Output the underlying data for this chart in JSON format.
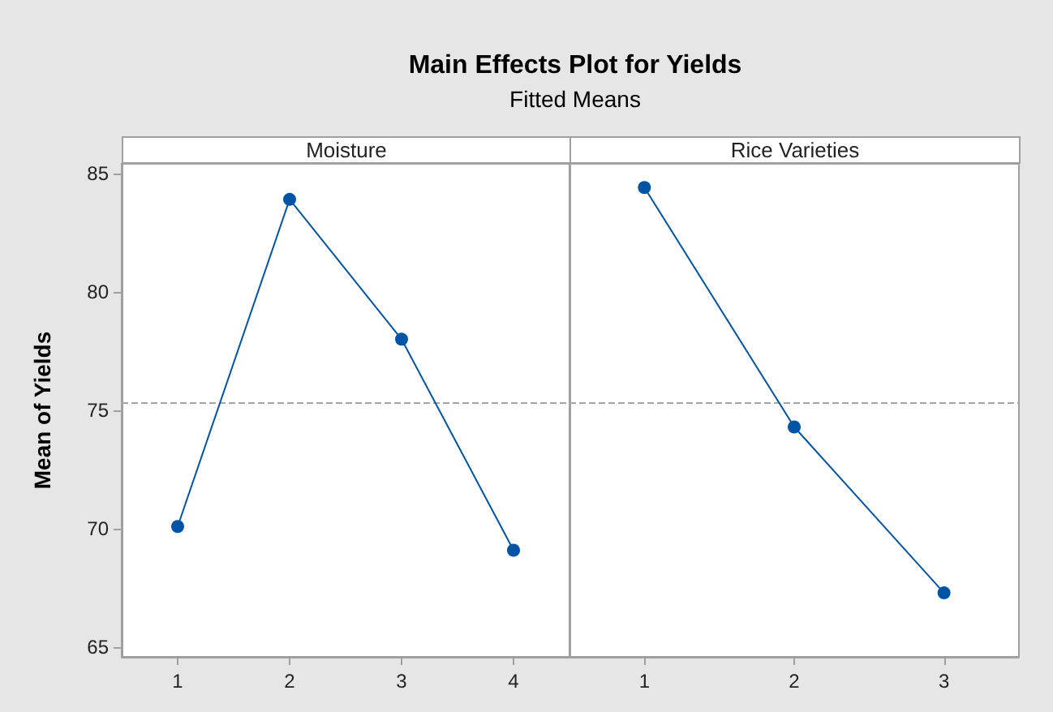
{
  "chart_data": [
    {
      "type": "line",
      "title": "Main Effects Plot for Yields",
      "subtitle": "Fitted Means",
      "xlabel": "Moisture",
      "ylabel": "Mean of Yields",
      "categories": [
        "1",
        "2",
        "3",
        "4"
      ],
      "series": [
        {
          "color": "#0054a6",
          "values": [
            70.1,
            83.9,
            78.0,
            69.1
          ]
        }
      ],
      "ylim": [
        64.6,
        85.4
      ],
      "yticks": [
        65,
        70,
        75,
        80,
        85
      ],
      "grid": false,
      "marker": "circle",
      "line_style": "solid",
      "ref_lines": [
        {
          "axis": "y",
          "value": 75.3,
          "color": "#a6a6a6",
          "line_style": "dashed"
        }
      ]
    },
    {
      "type": "line",
      "xlabel": "Rice Varieties",
      "categories": [
        "1",
        "2",
        "3"
      ],
      "series": [
        {
          "color": "#0054a6",
          "values": [
            84.4,
            74.3,
            67.3
          ]
        }
      ],
      "ylim": [
        64.6,
        85.4
      ],
      "yticks": [
        65,
        70,
        75,
        80,
        85
      ],
      "tick_labels": "x",
      "grid": false,
      "marker": "circle",
      "line_style": "solid",
      "ref_lines": [
        {
          "axis": "y",
          "value": 75.3,
          "color": "#a6a6a6",
          "line_style": "dashed"
        }
      ]
    }
  ]
}
